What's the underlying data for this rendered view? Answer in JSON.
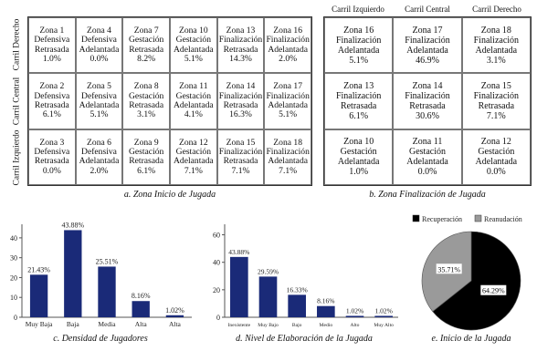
{
  "panel_a": {
    "lanes": [
      "Carril Derecho",
      "Carril Central",
      "Carril Izquierdo"
    ],
    "caption": "a. Zona Inicio de Jugada",
    "rows": [
      [
        {
          "zona": "Zona 1",
          "l1": "Defensiva",
          "l2": "Retrasada",
          "pct": "1.0%"
        },
        {
          "zona": "Zona 4",
          "l1": "Defensiva",
          "l2": "Adelantada",
          "pct": "0.0%"
        },
        {
          "zona": "Zona 7",
          "l1": "Gestación",
          "l2": "Retrasada",
          "pct": "8.2%"
        },
        {
          "zona": "Zona 10",
          "l1": "Gestación",
          "l2": "Adelantada",
          "pct": "5.1%"
        },
        {
          "zona": "Zona 13",
          "l1": "Finalización",
          "l2": "Retrasada",
          "pct": "14.3%"
        },
        {
          "zona": "Zona 16",
          "l1": "Finalización",
          "l2": "Adelantada",
          "pct": "2.0%"
        }
      ],
      [
        {
          "zona": "Zona 2",
          "l1": "Defensiva",
          "l2": "Retrasada",
          "pct": "6.1%"
        },
        {
          "zona": "Zona 5",
          "l1": "Defensiva",
          "l2": "Adelantada",
          "pct": "5.1%"
        },
        {
          "zona": "Zona 8",
          "l1": "Gestación",
          "l2": "Retrasada",
          "pct": "3.1%"
        },
        {
          "zona": "Zona 11",
          "l1": "Gestación",
          "l2": "Adelantada",
          "pct": "4.1%"
        },
        {
          "zona": "Zona 14",
          "l1": "Finalización",
          "l2": "Retrasada",
          "pct": "16.3%"
        },
        {
          "zona": "Zona 17",
          "l1": "Finalización",
          "l2": "Adelantada",
          "pct": "5.1%"
        }
      ],
      [
        {
          "zona": "Zona 3",
          "l1": "Defensiva",
          "l2": "Retrasada",
          "pct": "0.0%"
        },
        {
          "zona": "Zona 6",
          "l1": "Defensiva",
          "l2": "Adelantada",
          "pct": "2.0%"
        },
        {
          "zona": "Zona 9",
          "l1": "Gestación",
          "l2": "Retrasada",
          "pct": "6.1%"
        },
        {
          "zona": "Zona 12",
          "l1": "Gestación",
          "l2": "Adelantada",
          "pct": "7.1%"
        },
        {
          "zona": "Zona 15",
          "l1": "Finalización",
          "l2": "Retrasada",
          "pct": "7.1%"
        },
        {
          "zona": "Zona 18",
          "l1": "Finalización",
          "l2": "Adelantada",
          "pct": "7.1%"
        }
      ]
    ]
  },
  "panel_b": {
    "lanes": [
      "Carril Izquierdo",
      "Carril Central",
      "Carril Derecho"
    ],
    "caption": "b. Zona Finalización de Jugada",
    "rows": [
      [
        {
          "zona": "Zona 16",
          "l1": "Finalización",
          "l2": "Adelantada",
          "pct": "5.1%"
        },
        {
          "zona": "Zona 17",
          "l1": "Finalización",
          "l2": "Adelantada",
          "pct": "46.9%"
        },
        {
          "zona": "Zona 18",
          "l1": "Finalización",
          "l2": "Adelantada",
          "pct": "3.1%"
        }
      ],
      [
        {
          "zona": "Zona 13",
          "l1": "Finalización",
          "l2": "Retrasada",
          "pct": "6.1%"
        },
        {
          "zona": "Zona 14",
          "l1": "Finalización",
          "l2": "Retrasada",
          "pct": "30.6%"
        },
        {
          "zona": "Zona 15",
          "l1": "Finalización",
          "l2": "Retrasada",
          "pct": "7.1%"
        }
      ],
      [
        {
          "zona": "Zona 10",
          "l1": "Gestación",
          "l2": "Adelantada",
          "pct": "1.0%"
        },
        {
          "zona": "Zona 11",
          "l1": "Gestación",
          "l2": "Adelantada",
          "pct": "0.0%"
        },
        {
          "zona": "Zona 12",
          "l1": "Gestación",
          "l2": "Adelantada",
          "pct": "0.0%"
        }
      ]
    ]
  },
  "chart_data": [
    {
      "type": "bar",
      "title": "c. Densidad de Jugadores",
      "categories": [
        "Muy Baja",
        "Baja",
        "Media",
        "Alta",
        "Alta"
      ],
      "values": [
        21.43,
        43.88,
        25.51,
        8.16,
        1.02
      ],
      "labels": [
        "21.43%",
        "43.88%",
        "25.51%",
        "8.16%",
        "1.02%"
      ],
      "yticks": [
        0,
        10,
        20,
        30,
        40
      ],
      "ylim": [
        0,
        45
      ],
      "bar_color": "#1a2a78"
    },
    {
      "type": "bar",
      "title": "d. Nivel de Elaboración de la Jugada",
      "categories": [
        "Inexistente",
        "Muy Bajo",
        "Bajo",
        "Medio",
        "Alto",
        "Muy Alto"
      ],
      "values": [
        43.88,
        29.59,
        16.33,
        8.16,
        1.02,
        1.02
      ],
      "labels": [
        "43.88%",
        "29.59%",
        "16.33%",
        "8.16%",
        "1.02%",
        "1.02%"
      ],
      "yticks": [
        0,
        20,
        40,
        60
      ],
      "ylim": [
        0,
        65
      ],
      "bar_color": "#1a2a78"
    },
    {
      "type": "pie",
      "title": "e. Inicio de la Jugada",
      "legend": [
        "Recuperación",
        "Reanudación"
      ],
      "values": [
        64.29,
        35.71
      ],
      "labels": [
        "64.29%",
        "35.71%"
      ],
      "colors": [
        "#000000",
        "#9a9a9a"
      ]
    }
  ]
}
